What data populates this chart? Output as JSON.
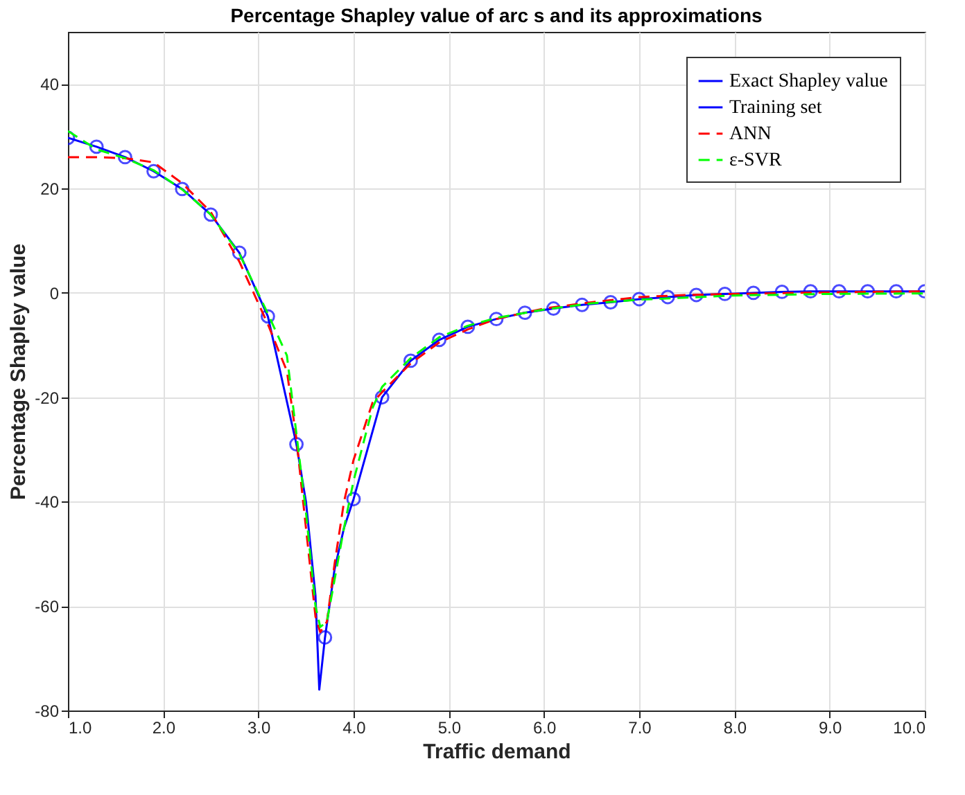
{
  "chart_data": {
    "type": "line",
    "title": "Percentage Shapley value of arc s and its approximations",
    "xlabel": "Traffic demand",
    "ylabel": "Percentage Shapley value",
    "xlim": [
      1,
      10
    ],
    "xticks": [
      {
        "value": 1,
        "label": "1.0"
      },
      {
        "value": 2,
        "label": "2.0"
      },
      {
        "value": 3,
        "label": "3.0"
      },
      {
        "value": 4,
        "label": "4.0"
      },
      {
        "value": 5,
        "label": "5.0"
      },
      {
        "value": 6,
        "label": "6.0"
      },
      {
        "value": 7,
        "label": "7.0"
      },
      {
        "value": 8,
        "label": "8.0"
      },
      {
        "value": 9,
        "label": "9.0"
      },
      {
        "value": 10,
        "label": "10.0"
      }
    ],
    "ylim": [
      -80,
      50
    ],
    "yticks": [
      -80,
      -60,
      -40,
      -20,
      0,
      20,
      40
    ],
    "grid": true,
    "legend": "top right",
    "series": [
      {
        "name": "Exact Shapley value",
        "color": "#0000ff",
        "line_style": "solid",
        "x": [
          1,
          1.3,
          1.6,
          1.9,
          2.2,
          2.5,
          2.8,
          3.1,
          3.4,
          3.5,
          3.6,
          3.64,
          3.7,
          3.8,
          3.9,
          4.0,
          4.3,
          4.6,
          4.9,
          5.2,
          5.5,
          5.8,
          6.1,
          6.4,
          6.7,
          7.0,
          7.3,
          7.6,
          7.9,
          8.2,
          8.5,
          8.8,
          9.1,
          9.4,
          9.7,
          10
        ],
        "values": [
          29.7,
          28,
          26,
          23.3,
          19.9,
          15,
          7.7,
          -4.5,
          -29,
          -40,
          -58,
          -76,
          -66,
          -53,
          -45,
          -39.5,
          -20,
          -13,
          -9,
          -6.5,
          -5,
          -3.8,
          -3,
          -2.3,
          -1.8,
          -1.2,
          -0.8,
          -0.4,
          -0.2,
          0,
          0.2,
          0.3,
          0.3,
          0.3,
          0.3,
          0.3
        ]
      },
      {
        "name": "Training set",
        "type": "scatter",
        "marker": "circle",
        "color": "#0000ff",
        "x": [
          1,
          1.3,
          1.6,
          1.9,
          2.2,
          2.5,
          2.8,
          3.1,
          3.4,
          3.7,
          4.0,
          4.3,
          4.6,
          4.9,
          5.2,
          5.5,
          5.8,
          6.1,
          6.4,
          6.7,
          7.0,
          7.3,
          7.6,
          7.9,
          8.2,
          8.5,
          8.8,
          9.1,
          9.4,
          9.7,
          10
        ],
        "values": [
          29.7,
          28,
          26,
          23.3,
          19.9,
          15,
          7.7,
          -4.5,
          -29,
          -66,
          -39.5,
          -20,
          -13,
          -9,
          -6.5,
          -5,
          -3.8,
          -3,
          -2.3,
          -1.8,
          -1.2,
          -0.8,
          -0.4,
          -0.2,
          0,
          0.2,
          0.3,
          0.3,
          0.3,
          0.3,
          0.3
        ]
      },
      {
        "name": "ANN",
        "color": "#ff0000",
        "line_style": "dashed",
        "x": [
          1,
          1.3,
          1.6,
          1.9,
          2.2,
          2.5,
          2.8,
          3.1,
          3.3,
          3.4,
          3.5,
          3.6,
          3.65,
          3.72,
          3.8,
          3.9,
          4.0,
          4.2,
          4.3,
          4.6,
          4.9,
          5.2,
          5.5,
          6,
          6.5,
          7,
          7.5,
          8,
          9,
          10
        ],
        "values": [
          26,
          26,
          25.8,
          25,
          21,
          15.5,
          6,
          -6,
          -15,
          -28,
          -45,
          -62,
          -65,
          -63,
          -52,
          -40,
          -32,
          -21,
          -19,
          -13.5,
          -9.5,
          -7,
          -5,
          -3,
          -1.8,
          -0.8,
          -0.4,
          -0.2,
          0.1,
          0.3
        ]
      },
      {
        "name": "ε-SVR",
        "color": "#00ff00",
        "line_style": "dashed",
        "x": [
          1,
          1.3,
          1.6,
          1.9,
          2.2,
          2.5,
          2.8,
          3.1,
          3.3,
          3.4,
          3.5,
          3.6,
          3.65,
          3.72,
          3.8,
          3.9,
          4.0,
          4.2,
          4.3,
          4.6,
          4.9,
          5.2,
          5.5,
          6,
          6.5,
          7,
          7.5,
          8,
          9,
          10
        ],
        "values": [
          31,
          27.5,
          25.8,
          23.5,
          19.8,
          15,
          7.5,
          -4,
          -12,
          -27,
          -42,
          -60,
          -64,
          -63,
          -55,
          -45,
          -36,
          -22,
          -18,
          -12.5,
          -8.5,
          -6.3,
          -4.8,
          -3.2,
          -2,
          -1.3,
          -0.9,
          -0.5,
          -0.2,
          -0.1
        ]
      }
    ]
  }
}
